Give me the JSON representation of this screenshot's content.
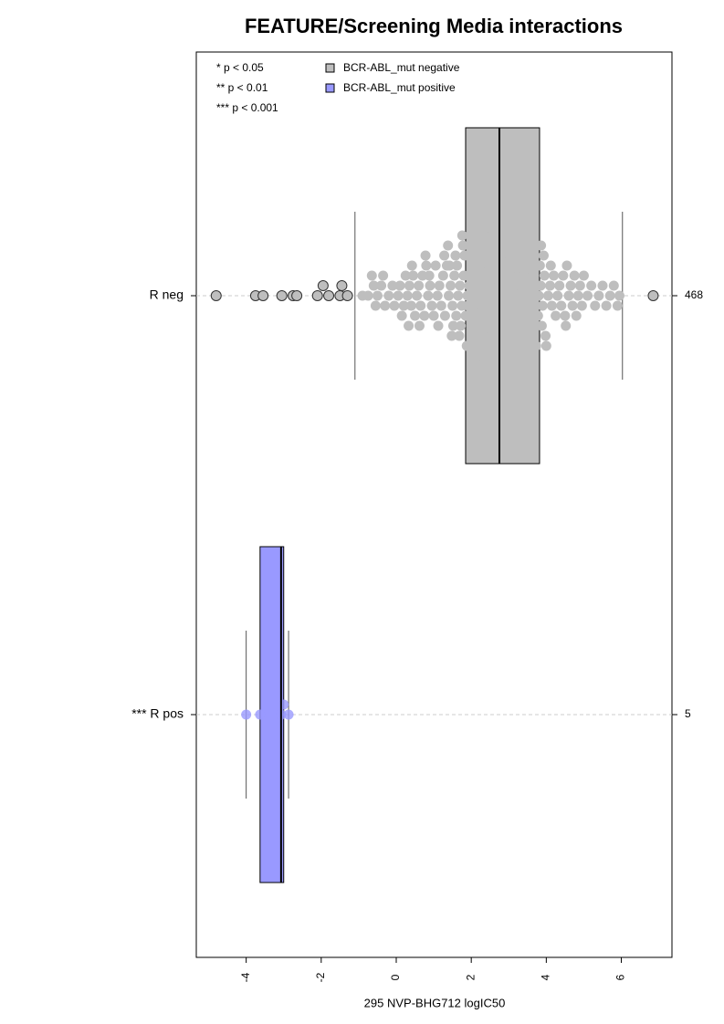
{
  "chart_data": {
    "type": "beeswarm-box",
    "title": "FEATURE/Screening Media interactions",
    "xlabel": "295 NVP-BHG712 logIC50",
    "categories": [
      "R neg",
      "*** R pos"
    ],
    "counts": [
      468,
      5
    ],
    "notes": [
      "* p < 0.05",
      "** p < 0.01",
      "*** p < 0.001"
    ],
    "xlim": [
      -5.33,
      7.35
    ],
    "xticks": [
      -4,
      -2,
      0,
      2,
      4,
      6
    ],
    "series": [
      {
        "name": "BCR-ABL_mut negative",
        "color": "#bebebe",
        "box": {
          "whisker_low": -1.1,
          "q1": 1.85,
          "median": 2.75,
          "q3": 3.82,
          "whisker_high": 6.03
        },
        "values": [
          -4.8,
          -3.75,
          -3.55,
          -3.05,
          -2.75,
          -2.65,
          -2.1,
          -1.95,
          -1.8,
          -1.5,
          -1.45,
          -1.3,
          6.85,
          -0.9,
          -0.75,
          -0.6,
          -0.5,
          -0.4,
          -0.3,
          -0.55,
          -0.2,
          -0.1,
          -0.35,
          -0.65,
          -0.05,
          0.05,
          0.1,
          0.2,
          0.25,
          0.3,
          0.35,
          0.4,
          0.45,
          0.5,
          0.55,
          0.6,
          0.65,
          0.7,
          0.75,
          0.8,
          0.85,
          0.9,
          0.95,
          0.15,
          0.42,
          0.62,
          0.78,
          0.88,
          0.33,
          1.0,
          1.05,
          1.1,
          1.15,
          1.2,
          1.25,
          1.3,
          1.35,
          1.4,
          1.45,
          1.5,
          1.55,
          1.6,
          1.65,
          1.7,
          1.75,
          1.8,
          1.85,
          1.9,
          1.95,
          1.12,
          1.28,
          1.42,
          1.52,
          1.62,
          1.72,
          1.82,
          1.92,
          1.58,
          1.68,
          1.78,
          1.88,
          1.48,
          1.38,
          1.98,
          1.76,
          2.0,
          2.05,
          2.1,
          2.15,
          2.2,
          2.25,
          2.3,
          2.35,
          2.4,
          2.45,
          2.5,
          2.55,
          2.6,
          2.65,
          2.7,
          2.75,
          2.8,
          2.85,
          2.9,
          2.95,
          2.02,
          2.07,
          2.12,
          2.17,
          2.22,
          2.27,
          2.32,
          2.37,
          2.42,
          2.47,
          2.52,
          2.57,
          2.62,
          2.67,
          2.72,
          2.77,
          2.82,
          2.87,
          2.92,
          2.97,
          2.04,
          2.14,
          2.24,
          2.34,
          2.44,
          2.54,
          2.64,
          2.74,
          2.84,
          2.94,
          2.09,
          2.19,
          2.29,
          2.39,
          2.49,
          2.59,
          2.69,
          2.79,
          2.89,
          2.99,
          3.0,
          3.05,
          3.1,
          3.15,
          3.2,
          3.25,
          3.3,
          3.35,
          3.4,
          3.45,
          3.5,
          3.55,
          3.6,
          3.65,
          3.7,
          3.75,
          3.8,
          3.85,
          3.9,
          3.95,
          3.03,
          3.08,
          3.13,
          3.18,
          3.23,
          3.28,
          3.33,
          3.38,
          3.43,
          3.48,
          3.53,
          3.58,
          3.63,
          3.68,
          3.73,
          3.78,
          3.83,
          3.88,
          3.93,
          3.98,
          3.06,
          3.26,
          3.46,
          3.66,
          3.86,
          4.0,
          4.05,
          4.1,
          4.15,
          4.2,
          4.25,
          4.3,
          4.35,
          4.4,
          4.45,
          4.5,
          4.55,
          4.6,
          4.65,
          4.7,
          4.75,
          4.8,
          4.85,
          4.9,
          4.95,
          4.12,
          4.52,
          5.0,
          5.1,
          5.2,
          5.3,
          5.4,
          5.5,
          5.6,
          5.7,
          5.8,
          5.9,
          5.95
        ]
      },
      {
        "name": "BCR-ABL_mut positive",
        "color": "#9999ff",
        "box": {
          "whisker_low": -4.0,
          "q1": -3.63,
          "median": -3.07,
          "q3": -3.0,
          "whisker_high": -2.87
        },
        "values": [
          -4.0,
          -3.63,
          -3.07,
          -3.0,
          -2.87
        ]
      }
    ]
  }
}
